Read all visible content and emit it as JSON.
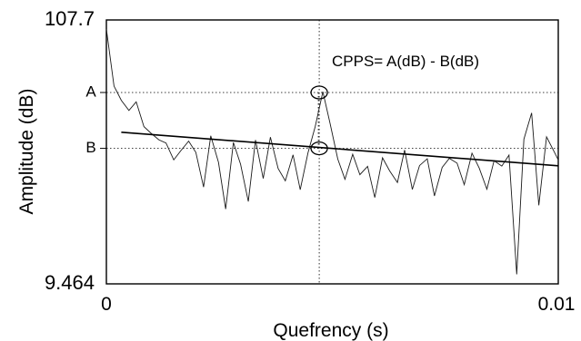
{
  "chart_data": {
    "type": "line",
    "xlabel": "Quefrency (s)",
    "ylabel": "Amplitude (dB)",
    "xlim": [
      0,
      0.01
    ],
    "ylim": [
      9.464,
      107.7
    ],
    "x_ticks": [
      "0",
      "0.01"
    ],
    "y_ticks": [
      "107.7",
      "9.464"
    ],
    "grid": false,
    "annotation": "CPPS= A(dB) - B(dB)",
    "markers": {
      "A_label": "A",
      "B_label": "B",
      "A_value": 80.7,
      "B_value": 59.9,
      "peak_quefrency": 0.00471
    },
    "regression_line": {
      "x": [
        0.00033,
        0.01
      ],
      "y": [
        65.9,
        53.4
      ]
    },
    "series": [
      {
        "x": [
          0,
          0.00017,
          0.00033,
          0.0005,
          0.00066,
          0.00083,
          0.00099,
          0.00116,
          0.00132,
          0.00149,
          0.00165,
          0.00182,
          0.00198,
          0.00215,
          0.00231,
          0.00248,
          0.00264,
          0.00281,
          0.00297,
          0.00314,
          0.0033,
          0.00347,
          0.00363,
          0.0038,
          0.00396,
          0.00413,
          0.00429,
          0.00446,
          0.00462,
          0.00479,
          0.00495,
          0.00512,
          0.00528,
          0.00545,
          0.00561,
          0.00578,
          0.00594,
          0.00611,
          0.00627,
          0.00644,
          0.0066,
          0.00677,
          0.00693,
          0.0071,
          0.00726,
          0.00743,
          0.00759,
          0.00776,
          0.00792,
          0.00809,
          0.00825,
          0.00842,
          0.00858,
          0.00875,
          0.00891,
          0.00908,
          0.00924,
          0.00941,
          0.00957,
          0.00974,
          0.0099,
          0.01
        ],
        "y": [
          104.3,
          83.1,
          77.8,
          74.0,
          77.2,
          68.0,
          65.5,
          63.1,
          61.9,
          55.6,
          59.1,
          62.6,
          58.4,
          45.5,
          64.6,
          54.7,
          37.3,
          62.1,
          54.0,
          40.1,
          63.0,
          48.7,
          64.1,
          52.4,
          47.8,
          57.5,
          44.5,
          58.2,
          67.9,
          81.0,
          69.2,
          55.9,
          48.4,
          57.7,
          50.1,
          53.2,
          41.6,
          56.4,
          51.5,
          47.2,
          59.3,
          44.6,
          53.5,
          56.0,
          42.2,
          52.8,
          56.2,
          54.4,
          46.4,
          58.1,
          52.6,
          44.7,
          55.3,
          53.3,
          57.4,
          13.0,
          63.3,
          73.1,
          38.7,
          64.2,
          59.0,
          55.6
        ]
      }
    ]
  }
}
